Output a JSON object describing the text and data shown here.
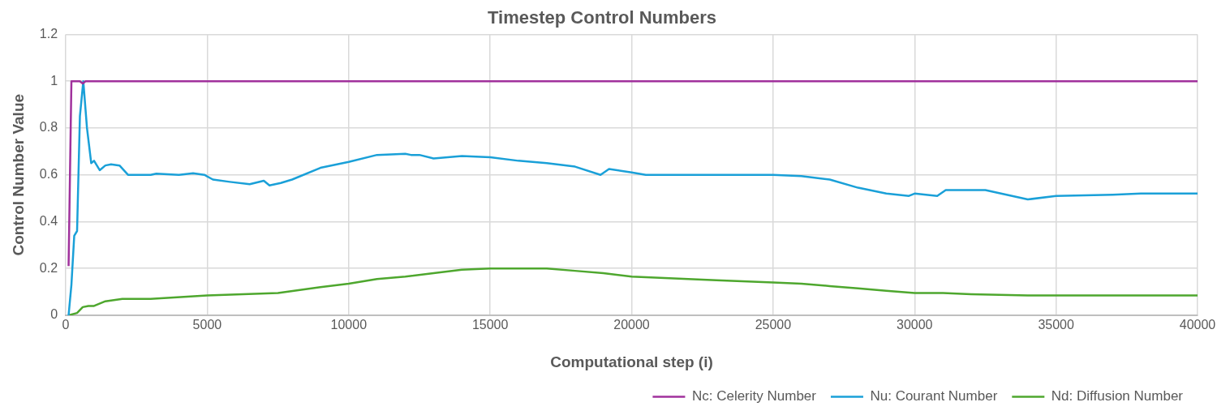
{
  "chart_data": {
    "type": "line",
    "title": "Timestep Control Numbers",
    "xlabel": "Computational step (i)",
    "ylabel": "Control Number Value",
    "xlim": [
      0,
      40000
    ],
    "xticks": [
      0,
      5000,
      10000,
      15000,
      20000,
      25000,
      30000,
      35000,
      40000
    ],
    "ylim": [
      0,
      1.2
    ],
    "yticks": [
      0,
      0.2,
      0.4,
      0.6,
      0.8,
      1,
      1.2
    ],
    "grid": true,
    "legend": "bottom right",
    "marker": "none",
    "line_style": "solid",
    "series": [
      {
        "name": "Nc: Celerity Number",
        "color": "#a0319c",
        "x": [
          100,
          200,
          500,
          600,
          700,
          40000
        ],
        "values": [
          0.21,
          1,
          1,
          0.99,
          1,
          1
        ]
      },
      {
        "name": "Nu: Courant Number",
        "color": "#1aa0d8",
        "x": [
          100,
          200,
          300,
          400,
          500,
          620,
          750,
          900,
          1000,
          1100,
          1200,
          1400,
          1600,
          1900,
          2200,
          3000,
          3200,
          4000,
          4500,
          4900,
          5200,
          5800,
          6500,
          7000,
          7200,
          7600,
          8000,
          9000,
          10000,
          11000,
          12000,
          12200,
          12500,
          13000,
          14000,
          15000,
          16000,
          17000,
          18000,
          18900,
          19200,
          20000,
          20500,
          25000,
          26000,
          27000,
          28000,
          29000,
          29800,
          30000,
          30800,
          31100,
          32500,
          34000,
          35000,
          37000,
          38000,
          40000
        ],
        "values": [
          0,
          0.13,
          0.34,
          0.36,
          0.85,
          1,
          0.8,
          0.65,
          0.66,
          0.64,
          0.62,
          0.64,
          0.645,
          0.64,
          0.6,
          0.6,
          0.605,
          0.6,
          0.607,
          0.6,
          0.58,
          0.57,
          0.56,
          0.575,
          0.555,
          0.565,
          0.58,
          0.63,
          0.655,
          0.685,
          0.69,
          0.685,
          0.685,
          0.67,
          0.68,
          0.675,
          0.66,
          0.65,
          0.635,
          0.6,
          0.625,
          0.61,
          0.6,
          0.6,
          0.595,
          0.58,
          0.545,
          0.52,
          0.51,
          0.52,
          0.51,
          0.535,
          0.535,
          0.495,
          0.51,
          0.515,
          0.52,
          0.52
        ]
      },
      {
        "name": "Nd: Diffusion Number",
        "color": "#4ea72e",
        "x": [
          100,
          400,
          600,
          800,
          1000,
          1400,
          2000,
          3000,
          5000,
          7500,
          9000,
          10000,
          11000,
          12000,
          13000,
          14000,
          15000,
          17000,
          18000,
          19000,
          20000,
          21000,
          22000,
          23000,
          25000,
          26000,
          27000,
          28000,
          29000,
          30000,
          31000,
          32000,
          34000,
          40000
        ],
        "values": [
          0,
          0.01,
          0.035,
          0.04,
          0.04,
          0.06,
          0.07,
          0.07,
          0.085,
          0.095,
          0.12,
          0.135,
          0.155,
          0.165,
          0.18,
          0.195,
          0.2,
          0.2,
          0.19,
          0.18,
          0.165,
          0.16,
          0.155,
          0.15,
          0.14,
          0.135,
          0.125,
          0.115,
          0.105,
          0.095,
          0.095,
          0.09,
          0.085,
          0.085
        ]
      }
    ]
  }
}
